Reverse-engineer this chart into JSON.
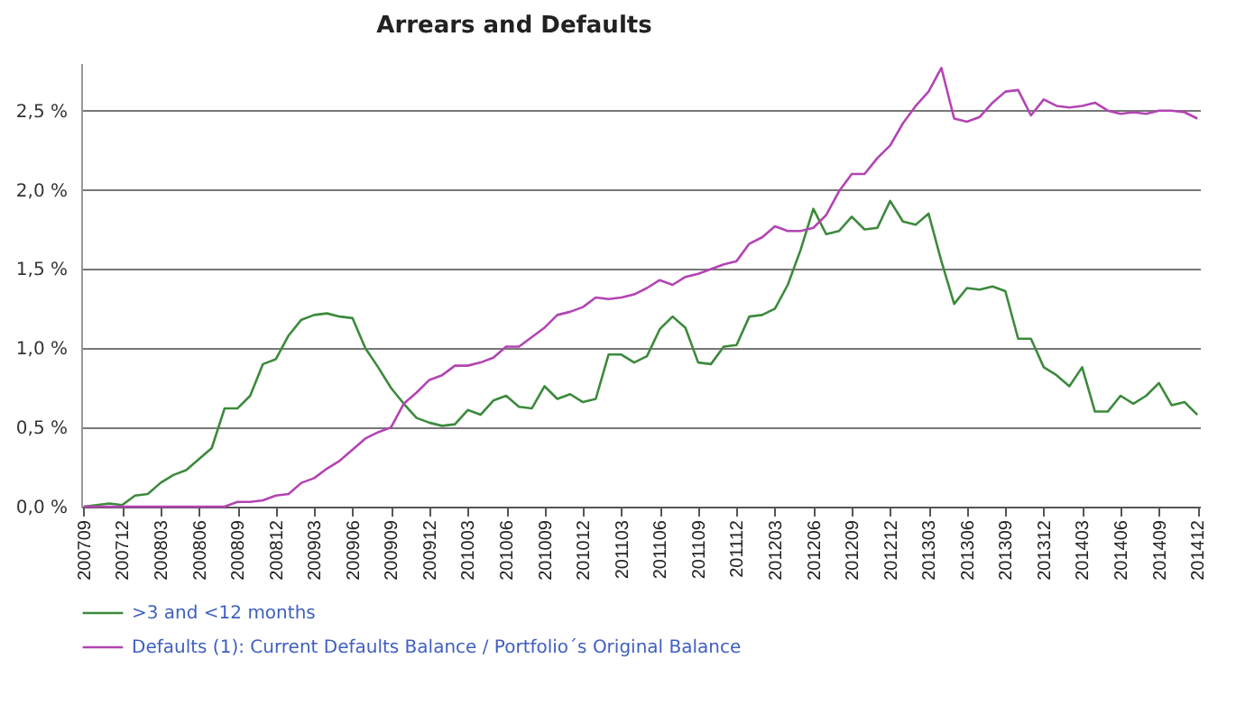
{
  "chart_data": {
    "type": "line",
    "title": "Arrears and Defaults",
    "categories": [
      "200709",
      null,
      null,
      "200712",
      null,
      null,
      "200803",
      null,
      null,
      "200806",
      null,
      null,
      "200809",
      null,
      null,
      "200812",
      null,
      null,
      "200903",
      null,
      null,
      "200906",
      null,
      null,
      "200909",
      null,
      null,
      "200912",
      null,
      null,
      "201003",
      null,
      null,
      "201006",
      null,
      null,
      "201009",
      null,
      null,
      "201012",
      null,
      null,
      "201103",
      null,
      null,
      "201106",
      null,
      null,
      "201109",
      null,
      null,
      "201112",
      null,
      null,
      "201203",
      null,
      null,
      "201206",
      null,
      null,
      "201209",
      null,
      null,
      "201212",
      null,
      null,
      "201303",
      null,
      null,
      "201306",
      null,
      null,
      "201309",
      null,
      null,
      "201312",
      null,
      null,
      "201403",
      null,
      null,
      "201406",
      null,
      null,
      "201409",
      null,
      null,
      "201412"
    ],
    "series": [
      {
        "name": ">3 and <12 months",
        "color": "#3c8a3c",
        "values": [
          0,
          0.01,
          0.02,
          0.01,
          0.07,
          0.08,
          0.15,
          0.2,
          0.23,
          0.3,
          0.37,
          0.62,
          0.62,
          0.7,
          0.9,
          0.93,
          1.08,
          1.18,
          1.21,
          1.22,
          1.2,
          1.19,
          1.0,
          0.88,
          0.75,
          0.65,
          0.56,
          0.53,
          0.51,
          0.52,
          0.61,
          0.58,
          0.67,
          0.7,
          0.63,
          0.62,
          0.76,
          0.68,
          0.71,
          0.66,
          0.68,
          0.96,
          0.96,
          0.91,
          0.95,
          1.12,
          1.2,
          1.13,
          0.91,
          0.9,
          1.01,
          1.02,
          1.2,
          1.21,
          1.25,
          1.4,
          1.62,
          1.88,
          1.72,
          1.74,
          1.83,
          1.75,
          1.76,
          1.93,
          1.8,
          1.78,
          1.85,
          1.55,
          1.28,
          1.38,
          1.37,
          1.39,
          1.36,
          1.06,
          1.06,
          0.88,
          0.83,
          0.76,
          0.88,
          0.6,
          0.6,
          0.7,
          0.65,
          0.7,
          0.78,
          0.64,
          0.66,
          0.58
        ]
      },
      {
        "name": "Defaults (1): Current Defaults Balance / Portfolio´s Original Balance",
        "color": "#b344b3",
        "values": [
          0,
          0,
          0,
          0,
          0,
          0,
          0,
          0,
          0,
          0,
          0,
          0,
          0.03,
          0.03,
          0.04,
          0.07,
          0.08,
          0.15,
          0.18,
          0.24,
          0.29,
          0.36,
          0.43,
          0.47,
          0.5,
          0.65,
          0.72,
          0.8,
          0.83,
          0.89,
          0.89,
          0.91,
          0.94,
          1.01,
          1.01,
          1.07,
          1.13,
          1.21,
          1.23,
          1.26,
          1.32,
          1.31,
          1.32,
          1.34,
          1.38,
          1.43,
          1.4,
          1.45,
          1.47,
          1.5,
          1.53,
          1.55,
          1.66,
          1.7,
          1.77,
          1.74,
          1.74,
          1.76,
          1.84,
          1.99,
          2.1,
          2.1,
          2.2,
          2.28,
          2.42,
          2.53,
          2.62,
          2.77,
          2.45,
          2.43,
          2.46,
          2.55,
          2.62,
          2.63,
          2.47,
          2.57,
          2.53,
          2.52,
          2.53,
          2.55,
          2.5,
          2.48,
          2.49,
          2.48,
          2.5,
          2.5,
          2.49,
          2.45
        ]
      }
    ],
    "ylim": [
      0,
      2.8
    ],
    "yticks": [
      {
        "value": 0,
        "label": "0,0 %"
      },
      {
        "value": 0.5,
        "label": "0,5 %"
      },
      {
        "value": 1,
        "label": "1,0 %"
      },
      {
        "value": 1.5,
        "label": "1,5 %"
      },
      {
        "value": 2,
        "label": "2,0 %"
      },
      {
        "value": 2.5,
        "label": "2,5 %"
      }
    ],
    "grid": "y",
    "legend": "bottom left",
    "marker": "none",
    "line_style": "solid"
  }
}
